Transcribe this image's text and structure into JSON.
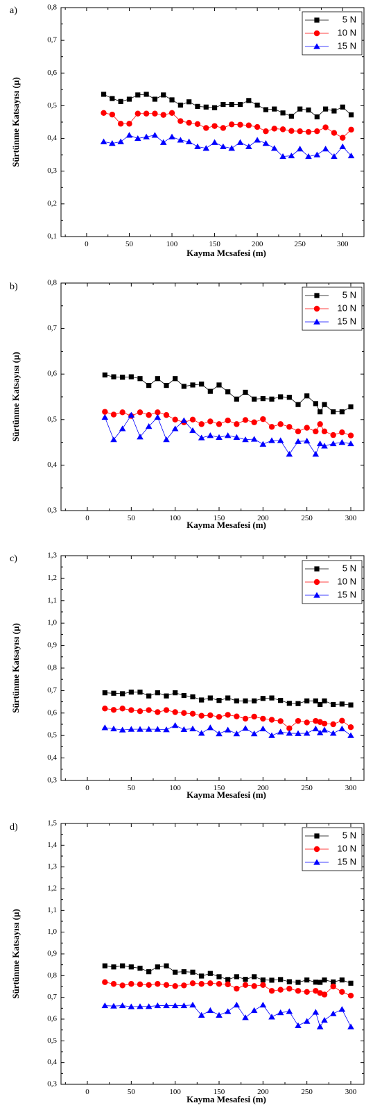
{
  "chart_data": [
    {
      "type": "line",
      "panel_label": "a)",
      "xlabel": "Kayma Mcsafesi (m)",
      "ylabel": "Sürtünme Katsayısı (µ)",
      "xlim": [
        -30,
        325
      ],
      "ylim": [
        0.1,
        0.8
      ],
      "xticks": [
        "0",
        "50",
        "100",
        "150",
        "200",
        "250",
        "300"
      ],
      "xtick_values": [
        0,
        50,
        100,
        150,
        200,
        250,
        300
      ],
      "yticks": [
        "0,1",
        "0,2",
        "0,3",
        "0,4",
        "0,5",
        "0,6",
        "0,7",
        "0,8"
      ],
      "ytick_values": [
        0.1,
        0.2,
        0.3,
        0.4,
        0.5,
        0.6,
        0.7,
        0.8
      ],
      "legend_position": "top-right",
      "x": [
        20,
        30,
        40,
        50,
        60,
        70,
        80,
        90,
        100,
        110,
        120,
        130,
        140,
        150,
        160,
        170,
        180,
        190,
        200,
        210,
        220,
        230,
        240,
        250,
        260,
        270,
        280,
        290,
        300,
        310
      ],
      "series": [
        {
          "name": "5 N",
          "color": "#000000",
          "marker": "square",
          "values": [
            0.535,
            0.522,
            0.513,
            0.52,
            0.533,
            0.535,
            0.52,
            0.533,
            0.518,
            0.502,
            0.512,
            0.498,
            0.496,
            0.494,
            0.504,
            0.504,
            0.504,
            0.516,
            0.502,
            0.488,
            0.49,
            0.478,
            0.468,
            0.49,
            0.487,
            0.466,
            0.49,
            0.484,
            0.496,
            0.472
          ]
        },
        {
          "name": "10 N",
          "color": "#ff0000",
          "marker": "circle",
          "values": [
            0.478,
            0.473,
            0.445,
            0.445,
            0.476,
            0.476,
            0.476,
            0.472,
            0.478,
            0.453,
            0.448,
            0.444,
            0.432,
            0.438,
            0.432,
            0.443,
            0.442,
            0.44,
            0.435,
            0.422,
            0.43,
            0.428,
            0.423,
            0.422,
            0.42,
            0.422,
            0.434,
            0.417,
            0.402,
            0.427
          ]
        },
        {
          "name": "15 N",
          "color": "#0000ff",
          "marker": "triangle",
          "values": [
            0.39,
            0.385,
            0.39,
            0.41,
            0.4,
            0.405,
            0.41,
            0.388,
            0.405,
            0.395,
            0.39,
            0.375,
            0.37,
            0.388,
            0.375,
            0.37,
            0.388,
            0.375,
            0.395,
            0.385,
            0.37,
            0.345,
            0.347,
            0.368,
            0.345,
            0.35,
            0.368,
            0.345,
            0.375,
            0.347
          ]
        }
      ]
    },
    {
      "type": "line",
      "panel_label": "b)",
      "xlabel": "Kayma Mesafesi (m)",
      "ylabel": "Sürtünme Katsayısı (µ)",
      "xlim": [
        -30,
        315
      ],
      "ylim": [
        0.3,
        0.8
      ],
      "xticks": [
        "0",
        "50",
        "100",
        "150",
        "200",
        "250",
        "300"
      ],
      "xtick_values": [
        0,
        50,
        100,
        150,
        200,
        250,
        300
      ],
      "yticks": [
        "0,3",
        "0,4",
        "0,5",
        "0,6",
        "0,7",
        "0,8"
      ],
      "ytick_values": [
        0.3,
        0.4,
        0.5,
        0.6,
        0.7,
        0.8
      ],
      "legend_position": "top-right",
      "x": [
        20,
        30,
        40,
        50,
        60,
        70,
        80,
        90,
        100,
        110,
        120,
        130,
        140,
        150,
        160,
        170,
        180,
        190,
        200,
        210,
        220,
        230,
        240,
        250,
        260,
        265,
        270,
        280,
        290,
        300
      ],
      "series": [
        {
          "name": "5 N",
          "color": "#000000",
          "marker": "square",
          "values": [
            0.598,
            0.594,
            0.593,
            0.594,
            0.59,
            0.575,
            0.59,
            0.575,
            0.59,
            0.573,
            0.576,
            0.578,
            0.562,
            0.576,
            0.561,
            0.545,
            0.56,
            0.545,
            0.546,
            0.545,
            0.55,
            0.549,
            0.533,
            0.552,
            0.535,
            0.517,
            0.533,
            0.517,
            0.517,
            0.528
          ]
        },
        {
          "name": "10 N",
          "color": "#ff0000",
          "marker": "circle",
          "values": [
            0.517,
            0.511,
            0.516,
            0.508,
            0.516,
            0.51,
            0.516,
            0.51,
            0.5,
            0.494,
            0.5,
            0.49,
            0.496,
            0.49,
            0.498,
            0.49,
            0.499,
            0.494,
            0.501,
            0.484,
            0.49,
            0.484,
            0.474,
            0.482,
            0.474,
            0.49,
            0.474,
            0.466,
            0.472,
            0.465
          ]
        },
        {
          "name": "15 N",
          "color": "#0000ff",
          "marker": "triangle",
          "values": [
            0.505,
            0.456,
            0.48,
            0.51,
            0.462,
            0.485,
            0.505,
            0.456,
            0.48,
            0.498,
            0.476,
            0.46,
            0.465,
            0.461,
            0.465,
            0.461,
            0.456,
            0.457,
            0.446,
            0.454,
            0.454,
            0.424,
            0.452,
            0.453,
            0.424,
            0.447,
            0.442,
            0.447,
            0.45,
            0.447
          ]
        }
      ]
    },
    {
      "type": "line",
      "panel_label": "c)",
      "xlabel": "Kayma Mesafesi (m)",
      "ylabel": "Sürtünme Katsayısı (µ)",
      "xlim": [
        -30,
        315
      ],
      "ylim": [
        0.3,
        1.3
      ],
      "xticks": [
        "0",
        "50",
        "100",
        "150",
        "200",
        "250",
        "300"
      ],
      "xtick_values": [
        0,
        50,
        100,
        150,
        200,
        250,
        300
      ],
      "yticks": [
        "0,3",
        "0,4",
        "0,5",
        "0,6",
        "0,7",
        "0,8",
        "0,9",
        "1,0",
        "1,1",
        "1,2",
        "1,3"
      ],
      "ytick_values": [
        0.3,
        0.4,
        0.5,
        0.6,
        0.7,
        0.8,
        0.9,
        1.0,
        1.1,
        1.2,
        1.3
      ],
      "legend_position": "top-right",
      "x": [
        20,
        30,
        40,
        50,
        60,
        70,
        80,
        90,
        100,
        110,
        120,
        130,
        140,
        150,
        160,
        170,
        180,
        190,
        200,
        210,
        220,
        230,
        240,
        250,
        260,
        265,
        270,
        280,
        290,
        300
      ],
      "series": [
        {
          "name": "5 N",
          "color": "#000000",
          "marker": "square",
          "values": [
            0.69,
            0.688,
            0.686,
            0.693,
            0.693,
            0.676,
            0.69,
            0.676,
            0.69,
            0.678,
            0.672,
            0.658,
            0.667,
            0.656,
            0.667,
            0.654,
            0.654,
            0.654,
            0.665,
            0.667,
            0.656,
            0.643,
            0.642,
            0.654,
            0.654,
            0.638,
            0.654,
            0.638,
            0.64,
            0.636
          ]
        },
        {
          "name": "10 N",
          "color": "#ff0000",
          "marker": "circle",
          "values": [
            0.62,
            0.614,
            0.62,
            0.613,
            0.608,
            0.613,
            0.604,
            0.613,
            0.604,
            0.6,
            0.597,
            0.588,
            0.59,
            0.583,
            0.592,
            0.585,
            0.575,
            0.584,
            0.575,
            0.57,
            0.564,
            0.532,
            0.565,
            0.558,
            0.565,
            0.56,
            0.553,
            0.55,
            0.566,
            0.537
          ]
        },
        {
          "name": "15 N",
          "color": "#0000ff",
          "marker": "triangle",
          "values": [
            0.535,
            0.53,
            0.525,
            0.528,
            0.528,
            0.528,
            0.528,
            0.526,
            0.545,
            0.527,
            0.53,
            0.51,
            0.535,
            0.508,
            0.525,
            0.508,
            0.532,
            0.508,
            0.53,
            0.5,
            0.516,
            0.51,
            0.509,
            0.51,
            0.53,
            0.512,
            0.525,
            0.51,
            0.53,
            0.5
          ]
        }
      ]
    },
    {
      "type": "line",
      "panel_label": "d)",
      "xlabel": "Kayma Mesafesi (m)",
      "ylabel": "Sürtünme Katsayısı (µ)",
      "xlim": [
        -30,
        315
      ],
      "ylim": [
        0.3,
        1.5
      ],
      "xticks": [
        "0",
        "50",
        "100",
        "150",
        "200",
        "250",
        "300"
      ],
      "xtick_values": [
        0,
        50,
        100,
        150,
        200,
        250,
        300
      ],
      "yticks": [
        "0,3",
        "0,4",
        "0,5",
        "0,6",
        "0,7",
        "0,8",
        "0,9",
        "1,0",
        "1,1",
        "1,2",
        "1,3",
        "1,4",
        "1,5"
      ],
      "ytick_values": [
        0.3,
        0.4,
        0.5,
        0.6,
        0.7,
        0.8,
        0.9,
        1.0,
        1.1,
        1.2,
        1.3,
        1.4,
        1.5
      ],
      "legend_position": "top-right",
      "x": [
        20,
        30,
        40,
        50,
        60,
        70,
        80,
        90,
        100,
        110,
        120,
        130,
        140,
        150,
        160,
        170,
        180,
        190,
        200,
        210,
        220,
        230,
        240,
        250,
        260,
        265,
        270,
        280,
        290,
        300
      ],
      "series": [
        {
          "name": "5 N",
          "color": "#000000",
          "marker": "square",
          "values": [
            0.845,
            0.84,
            0.845,
            0.84,
            0.834,
            0.818,
            0.84,
            0.845,
            0.816,
            0.818,
            0.816,
            0.798,
            0.81,
            0.795,
            0.782,
            0.795,
            0.783,
            0.795,
            0.78,
            0.779,
            0.782,
            0.772,
            0.769,
            0.78,
            0.77,
            0.769,
            0.78,
            0.771,
            0.78,
            0.765
          ]
        },
        {
          "name": "10 N",
          "color": "#ff0000",
          "marker": "circle",
          "values": [
            0.77,
            0.762,
            0.755,
            0.762,
            0.76,
            0.757,
            0.762,
            0.757,
            0.752,
            0.755,
            0.765,
            0.762,
            0.765,
            0.762,
            0.76,
            0.74,
            0.757,
            0.752,
            0.757,
            0.73,
            0.735,
            0.74,
            0.73,
            0.725,
            0.73,
            0.72,
            0.713,
            0.75,
            0.725,
            0.708
          ]
        },
        {
          "name": "15 N",
          "color": "#0000ff",
          "marker": "triangle",
          "values": [
            0.662,
            0.66,
            0.662,
            0.657,
            0.658,
            0.658,
            0.662,
            0.662,
            0.662,
            0.662,
            0.665,
            0.618,
            0.64,
            0.618,
            0.635,
            0.665,
            0.607,
            0.64,
            0.665,
            0.61,
            0.63,
            0.635,
            0.57,
            0.59,
            0.632,
            0.565,
            0.595,
            0.625,
            0.645,
            0.565
          ]
        }
      ]
    }
  ]
}
